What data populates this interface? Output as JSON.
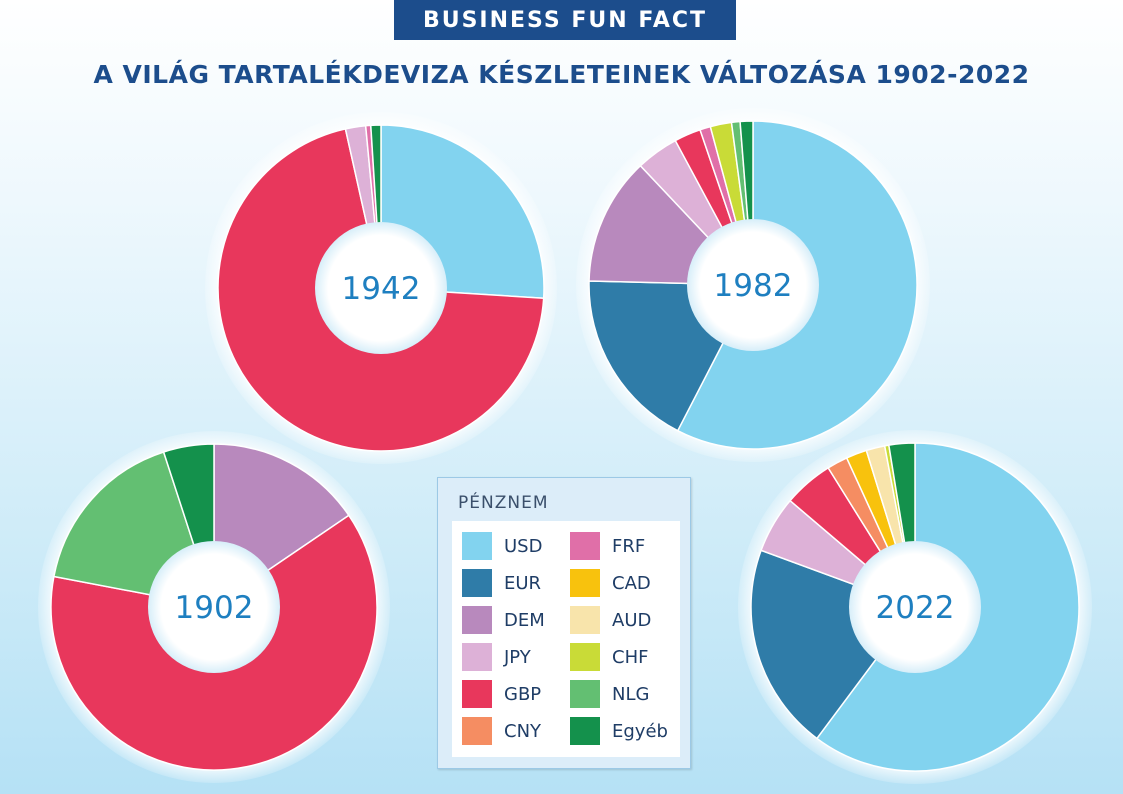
{
  "header": {
    "badge": "BUSINESS FUN FACT",
    "title": "A VILÁG TARTALÉKDEVIZA KÉSZLETEINEK VÁLTOZÁSA 1902-2022"
  },
  "colors": {
    "USD": "#82d3ef",
    "EUR": "#2f7ca8",
    "DEM": "#b889bd",
    "JPY": "#ddb1d7",
    "GBP": "#e8375c",
    "CNY": "#f58d62",
    "FRF": "#e06fa8",
    "CAD": "#f8c20d",
    "AUD": "#f8e4ab",
    "CHF": "#c9db37",
    "NLG": "#63bf72",
    "Egyéb": "#14914c",
    "year_text": "#1e7fc0",
    "title": "#1c4d8c"
  },
  "legend": {
    "title": "PÉNZNEM",
    "items": [
      {
        "label": "USD",
        "color": "#82d3ef"
      },
      {
        "label": "EUR",
        "color": "#2f7ca8"
      },
      {
        "label": "DEM",
        "color": "#b889bd"
      },
      {
        "label": "JPY",
        "color": "#ddb1d7"
      },
      {
        "label": "GBP",
        "color": "#e8375c"
      },
      {
        "label": "CNY",
        "color": "#f58d62"
      },
      {
        "label": "FRF",
        "color": "#e06fa8"
      },
      {
        "label": "CAD",
        "color": "#f8c20d"
      },
      {
        "label": "AUD",
        "color": "#f8e4ab"
      },
      {
        "label": "CHF",
        "color": "#c9db37"
      },
      {
        "label": "NLG",
        "color": "#63bf72"
      },
      {
        "label": "Egyéb",
        "color": "#14914c"
      }
    ]
  },
  "chart_data": [
    {
      "type": "pie",
      "year": "1942",
      "slices": [
        {
          "label": "USD",
          "value": 26.0
        },
        {
          "label": "GBP",
          "value": 70.5
        },
        {
          "label": "JPY",
          "value": 2.0
        },
        {
          "label": "FRF",
          "value": 0.5
        },
        {
          "label": "Egyéb",
          "value": 1.0
        }
      ]
    },
    {
      "type": "pie",
      "year": "1982",
      "slices": [
        {
          "label": "USD",
          "value": 55.0
        },
        {
          "label": "EUR",
          "value": 17.0
        },
        {
          "label": "DEM",
          "value": 12.0
        },
        {
          "label": "JPY",
          "value": 4.0
        },
        {
          "label": "GBP",
          "value": 2.5
        },
        {
          "label": "FRF",
          "value": 1.0
        },
        {
          "label": "CHF",
          "value": 2.0
        },
        {
          "label": "NLG",
          "value": 0.8
        },
        {
          "label": "Egyéb",
          "value": 1.2
        }
      ]
    },
    {
      "type": "pie",
      "year": "1902",
      "slices": [
        {
          "label": "DEM",
          "value": 15.5
        },
        {
          "label": "GBP",
          "value": 62.5
        },
        {
          "label": "NLG",
          "value": 17.0
        },
        {
          "label": "Egyéb",
          "value": 5.0
        }
      ]
    },
    {
      "type": "pie",
      "year": "2022",
      "slices": [
        {
          "label": "USD",
          "value": 59.0
        },
        {
          "label": "EUR",
          "value": 20.0
        },
        {
          "label": "JPY",
          "value": 5.5
        },
        {
          "label": "GBP",
          "value": 4.8
        },
        {
          "label": "CNY",
          "value": 2.0
        },
        {
          "label": "CAD",
          "value": 2.0
        },
        {
          "label": "AUD",
          "value": 1.8
        },
        {
          "label": "CHF",
          "value": 0.4
        },
        {
          "label": "Egyéb",
          "value": 2.5
        }
      ]
    }
  ]
}
